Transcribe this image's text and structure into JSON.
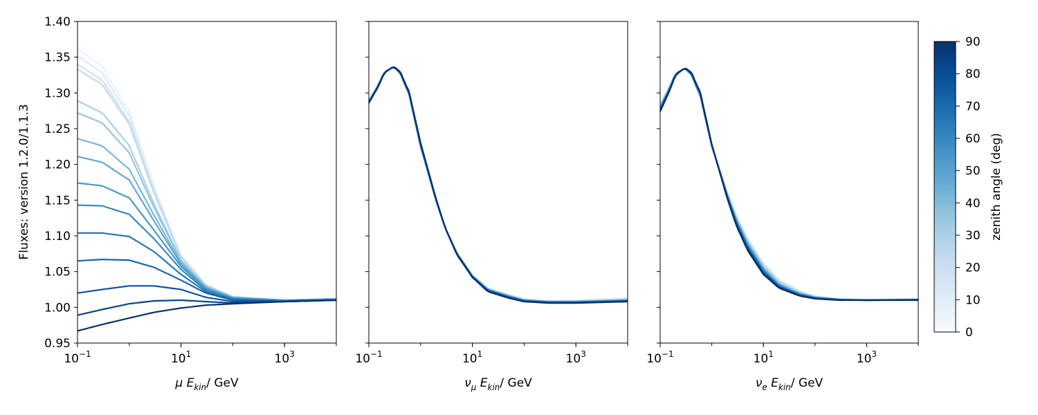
{
  "figure": {
    "ylabel": "Fluxes: version 1.2.0/1.1.3",
    "colorbar": {
      "label": "zenith angle (deg)",
      "ticks": [
        "0",
        "10",
        "20",
        "30",
        "40",
        "50",
        "60",
        "70",
        "80",
        "90"
      ],
      "range": [
        0,
        90
      ],
      "cmap_colors": [
        "#f7fbff",
        "#deebf7",
        "#c6dbef",
        "#9ecae1",
        "#6baed6",
        "#4292c6",
        "#2171b5",
        "#08519c",
        "#08306b"
      ]
    }
  },
  "chart_data": [
    {
      "type": "line",
      "panel": "mu",
      "xlabel_particle": "μ",
      "xlabel_main": "E",
      "xlabel_sub": "kin",
      "xlabel_unit": "/ GeV",
      "xscale": "log",
      "xlim": [
        0.1,
        10000
      ],
      "ylim": [
        0.95,
        1.4
      ],
      "yticks": [
        "0.95",
        "1.00",
        "1.05",
        "1.10",
        "1.15",
        "1.20",
        "1.25",
        "1.30",
        "1.35",
        "1.40"
      ],
      "xticks": [
        {
          "base": "10",
          "exp": "−1"
        },
        {
          "base": "10",
          "exp": "1"
        },
        {
          "base": "10",
          "exp": "3"
        }
      ],
      "series_param": "zenith angle (deg)",
      "series": [
        {
          "zenith": 90.0,
          "x": [
            0.1,
            0.3,
            1,
            3,
            10,
            30,
            100,
            1000,
            10000
          ],
          "y": [
            0.967,
            0.976,
            0.985,
            0.993,
            0.999,
            1.003,
            1.005,
            1.008,
            1.01
          ]
        },
        {
          "zenith": 84.0,
          "x": [
            0.1,
            0.3,
            1,
            3,
            10,
            30,
            100,
            1000,
            10000
          ],
          "y": [
            0.989,
            0.997,
            1.005,
            1.009,
            1.01,
            1.008,
            1.006,
            1.008,
            1.01
          ]
        },
        {
          "zenith": 78.0,
          "x": [
            0.1,
            0.3,
            1,
            3,
            10,
            30,
            100,
            1000,
            10000
          ],
          "y": [
            1.02,
            1.025,
            1.03,
            1.03,
            1.025,
            1.014,
            1.008,
            1.008,
            1.01
          ]
        },
        {
          "zenith": 72.0,
          "x": [
            0.1,
            0.3,
            1,
            3,
            10,
            30,
            100,
            1000,
            10000
          ],
          "y": [
            1.065,
            1.067,
            1.066,
            1.056,
            1.038,
            1.02,
            1.01,
            1.009,
            1.01
          ]
        },
        {
          "zenith": 66.0,
          "x": [
            0.1,
            0.3,
            1,
            3,
            10,
            30,
            100,
            1000,
            10000
          ],
          "y": [
            1.104,
            1.104,
            1.099,
            1.078,
            1.046,
            1.022,
            1.011,
            1.009,
            1.011
          ]
        },
        {
          "zenith": 60.0,
          "x": [
            0.1,
            0.3,
            1,
            3,
            10,
            30,
            100,
            1000,
            10000
          ],
          "y": [
            1.143,
            1.142,
            1.13,
            1.096,
            1.053,
            1.024,
            1.012,
            1.009,
            1.011
          ]
        },
        {
          "zenith": 54.0,
          "x": [
            0.1,
            0.3,
            1,
            3,
            10,
            30,
            100,
            1000,
            10000
          ],
          "y": [
            1.174,
            1.17,
            1.153,
            1.108,
            1.057,
            1.026,
            1.013,
            1.009,
            1.011
          ]
        },
        {
          "zenith": 48.0,
          "x": [
            0.1,
            0.3,
            1,
            3,
            10,
            30,
            100,
            1000,
            10000
          ],
          "y": [
            1.211,
            1.203,
            1.178,
            1.121,
            1.06,
            1.027,
            1.013,
            1.01,
            1.011
          ]
        },
        {
          "zenith": 42.0,
          "x": [
            0.1,
            0.3,
            1,
            3,
            10,
            30,
            100,
            1000,
            10000
          ],
          "y": [
            1.236,
            1.226,
            1.193,
            1.129,
            1.062,
            1.028,
            1.014,
            1.01,
            1.012
          ]
        },
        {
          "zenith": 36.0,
          "x": [
            0.1,
            0.3,
            1,
            3,
            10,
            30,
            100,
            1000,
            10000
          ],
          "y": [
            1.272,
            1.258,
            1.216,
            1.14,
            1.065,
            1.029,
            1.014,
            1.01,
            1.012
          ]
        },
        {
          "zenith": 30.0,
          "x": [
            0.1,
            0.3,
            1,
            3,
            10,
            30,
            100,
            1000,
            10000
          ],
          "y": [
            1.289,
            1.272,
            1.226,
            1.145,
            1.066,
            1.03,
            1.014,
            1.01,
            1.012
          ]
        },
        {
          "zenith": 24.0,
          "x": [
            0.1,
            0.3,
            1,
            3,
            10,
            30,
            100,
            1000,
            10000
          ],
          "y": [
            1.333,
            1.312,
            1.256,
            1.16,
            1.07,
            1.031,
            1.015,
            1.01,
            1.012
          ]
        },
        {
          "zenith": 18.0,
          "x": [
            0.1,
            0.3,
            1,
            3,
            10,
            30,
            100,
            1000,
            10000
          ],
          "y": [
            1.34,
            1.318,
            1.26,
            1.162,
            1.071,
            1.031,
            1.015,
            1.01,
            1.012
          ]
        },
        {
          "zenith": 12.0,
          "x": [
            0.1,
            0.3,
            1,
            3,
            10,
            30,
            100,
            1000,
            10000
          ],
          "y": [
            1.352,
            1.328,
            1.268,
            1.166,
            1.072,
            1.032,
            1.015,
            1.01,
            1.012
          ]
        },
        {
          "zenith": 6.0,
          "x": [
            0.1,
            0.3,
            1,
            3,
            10,
            30,
            100,
            1000,
            10000
          ],
          "y": [
            1.362,
            1.337,
            1.274,
            1.169,
            1.073,
            1.032,
            1.015,
            1.01,
            1.012
          ]
        },
        {
          "zenith": 0.0,
          "x": [
            0.1,
            0.3,
            1,
            3,
            10,
            30,
            100,
            1000,
            10000
          ],
          "y": [
            1.372,
            1.346,
            1.28,
            1.172,
            1.074,
            1.032,
            1.015,
            1.01,
            1.012
          ]
        }
      ]
    },
    {
      "type": "line",
      "panel": "numu",
      "xlabel_particle": "ν",
      "xlabel_particle_sub": "μ",
      "xlabel_main": "E",
      "xlabel_sub": "kin",
      "xlabel_unit": "/ GeV",
      "xscale": "log",
      "xlim": [
        0.1,
        10000
      ],
      "ylim": [
        0.95,
        1.4
      ],
      "xticks": [
        {
          "base": "10",
          "exp": "−1"
        },
        {
          "base": "10",
          "exp": "1"
        },
        {
          "base": "10",
          "exp": "3"
        }
      ],
      "series": [
        {
          "zenith": 0.0,
          "x": [
            0.1,
            0.15,
            0.2,
            0.3,
            0.4,
            0.6,
            1,
            2,
            3,
            5,
            10,
            20,
            50,
            100,
            300,
            1000,
            10000
          ],
          "y": [
            1.29,
            1.312,
            1.33,
            1.336,
            1.327,
            1.295,
            1.222,
            1.147,
            1.11,
            1.077,
            1.045,
            1.027,
            1.018,
            1.012,
            1.009,
            1.01,
            1.013
          ]
        },
        {
          "zenith": 45.0,
          "x": [
            0.1,
            0.15,
            0.2,
            0.3,
            0.4,
            0.6,
            1,
            2,
            3,
            5,
            10,
            20,
            50,
            100,
            300,
            1000,
            10000
          ],
          "y": [
            1.288,
            1.31,
            1.329,
            1.336,
            1.328,
            1.298,
            1.226,
            1.149,
            1.111,
            1.076,
            1.044,
            1.025,
            1.016,
            1.01,
            1.008,
            1.008,
            1.01
          ]
        },
        {
          "zenith": 90.0,
          "x": [
            0.1,
            0.15,
            0.2,
            0.3,
            0.4,
            0.6,
            1,
            2,
            3,
            5,
            10,
            20,
            50,
            100,
            300,
            1000,
            10000
          ],
          "y": [
            1.286,
            1.308,
            1.328,
            1.337,
            1.33,
            1.301,
            1.23,
            1.151,
            1.111,
            1.074,
            1.042,
            1.022,
            1.013,
            1.008,
            1.006,
            1.006,
            1.008
          ]
        }
      ]
    },
    {
      "type": "line",
      "panel": "nue",
      "xlabel_particle": "ν",
      "xlabel_particle_sub": "e",
      "xlabel_main": "E",
      "xlabel_sub": "kin",
      "xlabel_unit": "/ GeV",
      "xscale": "log",
      "xlim": [
        0.1,
        10000
      ],
      "ylim": [
        0.95,
        1.4
      ],
      "xticks": [
        {
          "base": "10",
          "exp": "−1"
        },
        {
          "base": "10",
          "exp": "1"
        },
        {
          "base": "10",
          "exp": "3"
        }
      ],
      "series": [
        {
          "zenith": 0.0,
          "x": [
            0.1,
            0.15,
            0.2,
            0.3,
            0.4,
            0.6,
            1,
            2,
            3,
            5,
            10,
            20,
            50,
            100,
            300,
            1000,
            10000
          ],
          "y": [
            1.285,
            1.31,
            1.328,
            1.334,
            1.324,
            1.292,
            1.224,
            1.162,
            1.13,
            1.098,
            1.064,
            1.04,
            1.024,
            1.016,
            1.012,
            1.011,
            1.012
          ]
        },
        {
          "zenith": 45.0,
          "x": [
            0.1,
            0.15,
            0.2,
            0.3,
            0.4,
            0.6,
            1,
            2,
            3,
            5,
            10,
            20,
            50,
            100,
            300,
            1000,
            10000
          ],
          "y": [
            1.28,
            1.306,
            1.327,
            1.334,
            1.326,
            1.296,
            1.226,
            1.157,
            1.122,
            1.088,
            1.054,
            1.032,
            1.019,
            1.014,
            1.011,
            1.01,
            1.011
          ]
        },
        {
          "zenith": 90.0,
          "x": [
            0.1,
            0.15,
            0.2,
            0.3,
            0.4,
            0.6,
            1,
            2,
            3,
            5,
            10,
            20,
            50,
            100,
            300,
            1000,
            10000
          ],
          "y": [
            1.274,
            1.302,
            1.325,
            1.335,
            1.329,
            1.3,
            1.228,
            1.152,
            1.114,
            1.079,
            1.046,
            1.027,
            1.016,
            1.012,
            1.01,
            1.01,
            1.01
          ]
        }
      ]
    }
  ]
}
